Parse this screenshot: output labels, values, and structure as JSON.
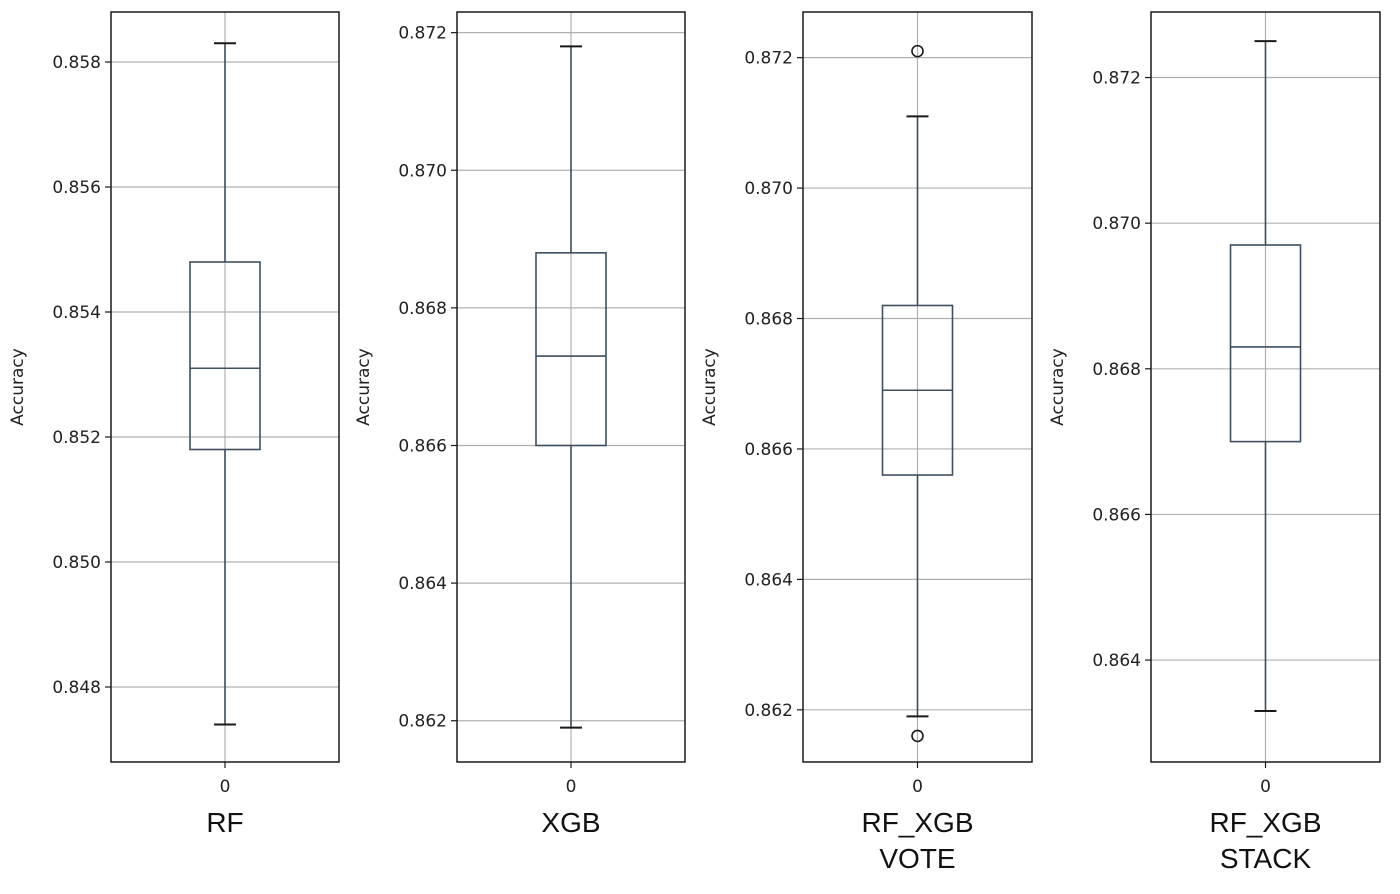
{
  "chart_data": [
    {
      "type": "box",
      "ylabel": "Accuracy",
      "x_tick": "0",
      "caption_lines": [
        "RF"
      ],
      "yticks": [
        "0.848",
        "0.850",
        "0.852",
        "0.854",
        "0.856",
        "0.858"
      ],
      "ylim": [
        0.8468,
        0.8588
      ],
      "grid": true,
      "box": {
        "whisker_low": 0.8474,
        "q1": 0.8518,
        "median": 0.8531,
        "q3": 0.8548,
        "whisker_high": 0.8583,
        "outliers": []
      }
    },
    {
      "type": "box",
      "ylabel": "Accuracy",
      "x_tick": "0",
      "caption_lines": [
        "XGB"
      ],
      "yticks": [
        "0.862",
        "0.864",
        "0.866",
        "0.868",
        "0.870",
        "0.872"
      ],
      "ylim": [
        0.8614,
        0.8723
      ],
      "grid": true,
      "box": {
        "whisker_low": 0.8619,
        "q1": 0.866,
        "median": 0.8673,
        "q3": 0.8688,
        "whisker_high": 0.8718,
        "outliers": []
      }
    },
    {
      "type": "box",
      "ylabel": "Accuracy",
      "x_tick": "0",
      "caption_lines": [
        "RF_XGB",
        "VOTE"
      ],
      "yticks": [
        "0.862",
        "0.864",
        "0.866",
        "0.868",
        "0.870",
        "0.872"
      ],
      "ylim": [
        0.8612,
        0.8727
      ],
      "grid": true,
      "box": {
        "whisker_low": 0.8619,
        "q1": 0.8656,
        "median": 0.8669,
        "q3": 0.8682,
        "whisker_high": 0.8711,
        "outliers": [
          0.8721,
          0.8616
        ]
      }
    },
    {
      "type": "box",
      "ylabel": "Accuracy",
      "x_tick": "0",
      "caption_lines": [
        "RF_XGB",
        "STACK"
      ],
      "yticks": [
        "0.864",
        "0.866",
        "0.868",
        "0.870",
        "0.872"
      ],
      "ylim": [
        0.8626,
        0.8729
      ],
      "grid": true,
      "box": {
        "whisker_low": 0.8633,
        "q1": 0.867,
        "median": 0.8683,
        "q3": 0.8697,
        "whisker_high": 0.8725,
        "outliers": []
      }
    }
  ],
  "style": {
    "axis_color": "#1a1a1a",
    "grid_color": "#b0b0b0",
    "box_color": "#3f4f5f",
    "text_color": "#222222"
  }
}
